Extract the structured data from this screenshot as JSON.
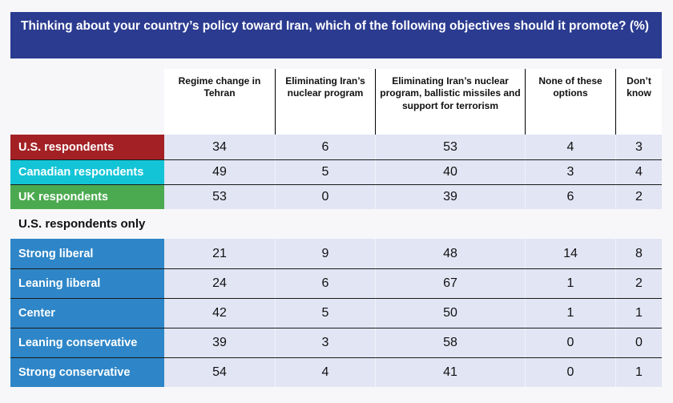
{
  "header": {
    "title": "Thinking about your country’s policy toward Iran, which of the following objectives should it promote? (%)"
  },
  "colors": {
    "title_bg": "#2b3b90",
    "us_row": "#a32125",
    "canada_row": "#13c4d6",
    "uk_row": "#4baa50",
    "ideology_row": "#2e86c8",
    "cell_bg": "#e2e5f4",
    "page_bg": "#f7f7fa",
    "separator": "#1a1a1a",
    "text_on_color": "#ffffff"
  },
  "chart_data": {
    "type": "table",
    "title": "Thinking about your country’s policy toward Iran, which of the following objectives should it promote? (%)",
    "columns": [
      "Regime change in Tehran",
      "Eliminating Iran’s nuclear program",
      "Eliminating Iran’s nuclear program, ballistic missiles and support for terrorism",
      "None of these options",
      "Don’t know"
    ],
    "rows": [
      {
        "label": "U.S. respondents",
        "group": "country",
        "color": "#a32125",
        "values": [
          34,
          6,
          53,
          4,
          3
        ]
      },
      {
        "label": "Canadian respondents",
        "group": "country",
        "color": "#13c4d6",
        "values": [
          49,
          5,
          40,
          3,
          4
        ]
      },
      {
        "label": "UK respondents",
        "group": "country",
        "color": "#4baa50",
        "values": [
          53,
          0,
          39,
          6,
          2
        ]
      },
      {
        "label": "U.S. respondents only",
        "section": true
      },
      {
        "label": "Strong liberal",
        "group": "ideology",
        "color": "#2e86c8",
        "values": [
          21,
          9,
          48,
          14,
          8
        ]
      },
      {
        "label": "Leaning liberal",
        "group": "ideology",
        "color": "#2e86c8",
        "values": [
          24,
          6,
          67,
          1,
          2
        ]
      },
      {
        "label": "Center",
        "group": "ideology",
        "color": "#2e86c8",
        "values": [
          42,
          5,
          50,
          1,
          1
        ]
      },
      {
        "label": "Leaning conservative",
        "group": "ideology",
        "color": "#2e86c8",
        "values": [
          39,
          3,
          58,
          0,
          0
        ]
      },
      {
        "label": "Strong conservative",
        "group": "ideology",
        "color": "#2e86c8",
        "values": [
          54,
          4,
          41,
          0,
          1
        ]
      }
    ]
  }
}
